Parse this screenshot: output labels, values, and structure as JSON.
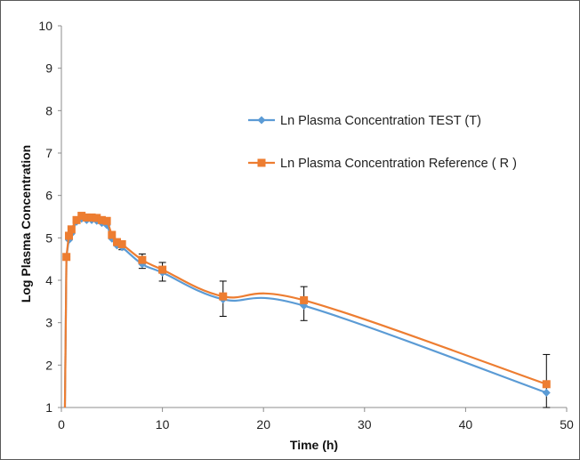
{
  "chart_data": {
    "type": "line",
    "xlabel": "Time (h)",
    "ylabel": "Log Plasma Concentration",
    "xlim": [
      0,
      50
    ],
    "ylim": [
      1,
      10
    ],
    "x_ticks": [
      0,
      10,
      20,
      30,
      40,
      50
    ],
    "y_ticks": [
      1,
      2,
      3,
      4,
      5,
      6,
      7,
      8,
      9,
      10
    ],
    "grid": false,
    "legend": "center-right",
    "x": [
      0.5,
      0.75,
      1,
      1.5,
      2,
      2.5,
      3,
      3.5,
      4,
      4.5,
      5,
      5.5,
      6,
      8,
      10,
      16,
      24,
      48
    ],
    "series": [
      {
        "name": "Ln Plasma Concentration TEST (T)",
        "color": "#5b9bd5",
        "marker": "diamond",
        "values": [
          4.55,
          4.95,
          5.1,
          5.38,
          5.45,
          5.42,
          5.42,
          5.4,
          5.35,
          5.3,
          4.98,
          4.82,
          4.78,
          4.38,
          4.18,
          3.55,
          3.4,
          1.35
        ]
      },
      {
        "name": "Ln Plasma Concentration Reference ( R )",
        "color": "#ed7d31",
        "marker": "square",
        "values": [
          4.55,
          5.05,
          5.2,
          5.42,
          5.52,
          5.48,
          5.48,
          5.47,
          5.42,
          5.4,
          5.07,
          4.9,
          4.85,
          4.48,
          4.25,
          3.62,
          3.53,
          1.55
        ]
      }
    ],
    "error_bars": [
      {
        "x": 6,
        "low": 4.72,
        "high": 4.9
      },
      {
        "x": 8,
        "low": 4.28,
        "high": 4.62
      },
      {
        "x": 10,
        "low": 3.98,
        "high": 4.42
      },
      {
        "x": 16,
        "low": 3.15,
        "high": 3.98
      },
      {
        "x": 24,
        "low": 3.05,
        "high": 3.85
      },
      {
        "x": 48,
        "low": 1.0,
        "high": 2.25
      }
    ]
  }
}
